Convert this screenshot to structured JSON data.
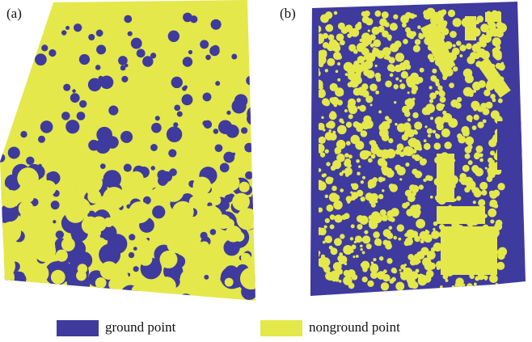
{
  "panels": [
    {
      "label": "(a)"
    },
    {
      "label": "(b)"
    }
  ],
  "legend": [
    {
      "label": "ground point",
      "color": "#3e3a9e"
    },
    {
      "label": "nonground point",
      "color": "#e4e84a"
    }
  ]
}
